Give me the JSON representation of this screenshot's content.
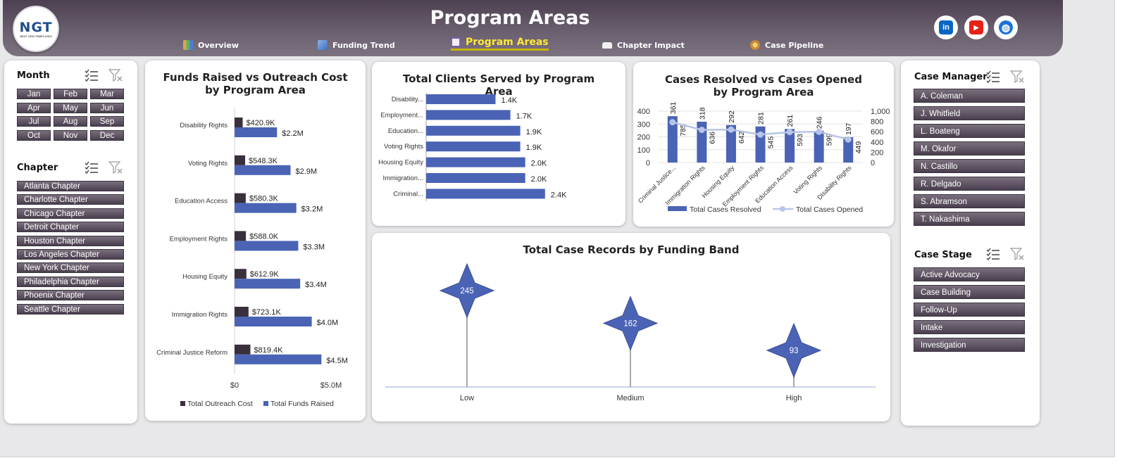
{
  "header": {
    "title": "Program Areas",
    "logo": {
      "text": "NGT",
      "subtext": "NEXT GEN TEMPLATES"
    },
    "nav": [
      {
        "label": "Overview",
        "icon": "bar-chart-icon"
      },
      {
        "label": "Funding Trend",
        "icon": "line-chart-icon"
      },
      {
        "label": "Program Areas",
        "icon": "clipboard-icon",
        "active": true
      },
      {
        "label": "Chapter Impact",
        "icon": "folder-icon"
      },
      {
        "label": "Case Pipeline",
        "icon": "pipeline-icon"
      }
    ],
    "social": [
      {
        "label": "in",
        "icon": "linkedin-icon",
        "color": "#0a66c2"
      },
      {
        "label": "▶",
        "icon": "youtube-icon",
        "color": "#e62117"
      },
      {
        "label": "◍",
        "icon": "globe-icon",
        "color": "#1a73d9"
      }
    ]
  },
  "slicers": {
    "month": {
      "title": "Month",
      "items": [
        "Jan",
        "Feb",
        "Mar",
        "Apr",
        "May",
        "Jun",
        "Jul",
        "Aug",
        "Sep",
        "Oct",
        "Nov",
        "Dec"
      ]
    },
    "chapter": {
      "title": "Chapter",
      "items": [
        "Atlanta Chapter",
        "Charlotte Chapter",
        "Chicago Chapter",
        "Detroit Chapter",
        "Houston Chapter",
        "Los Angeles Chapter",
        "New York Chapter",
        "Philadelphia Chapter",
        "Phoenix Chapter",
        "Seattle Chapter"
      ]
    },
    "case_manager": {
      "title": "Case Manager",
      "items": [
        "A. Coleman",
        "J. Whitfield",
        "L. Boateng",
        "M. Okafor",
        "N. Castillo",
        "R. Delgado",
        "S. Abramson",
        "T. Nakashima"
      ]
    },
    "case_stage": {
      "title": "Case Stage",
      "items": [
        "Active Advocacy",
        "Case Building",
        "Follow-Up",
        "Intake",
        "Investigation"
      ]
    }
  },
  "colors": {
    "header": "#5a4e5e",
    "outreach": "#3a2f3d",
    "funds": "#4a63b5",
    "opened": "#b8c5e6",
    "accent": "#ffe933"
  },
  "chart_data": [
    {
      "id": "funds",
      "type": "bar",
      "title": "Funds Raised vs Outreach Cost by Program Area",
      "categories": [
        "Disability Rights",
        "Voting Rights",
        "Education Access",
        "Employment Rights",
        "Housing Equity",
        "Immigration Rights",
        "Criminal Justice Reform"
      ],
      "series": [
        {
          "name": "Total Outreach Cost",
          "values": [
            420.9,
            548.3,
            580.3,
            588.0,
            612.9,
            723.1,
            819.4
          ],
          "labels": [
            "$420.9K",
            "$548.3K",
            "$580.3K",
            "$588.0K",
            "$612.9K",
            "$723.1K",
            "$819.4K"
          ]
        },
        {
          "name": "Total Funds Raised",
          "values": [
            2200,
            2900,
            3200,
            3300,
            3400,
            4000,
            4500
          ],
          "labels": [
            "$2.2M",
            "$2.9M",
            "$3.2M",
            "$3.3M",
            "$3.4M",
            "$4.0M",
            "$4.5M"
          ]
        }
      ],
      "xlim": [
        0,
        5000
      ],
      "tick_labels": [
        "$0",
        "$5.0M"
      ]
    },
    {
      "id": "clients",
      "type": "bar",
      "title": "Total Clients Served by Program Area",
      "categories": [
        "Disability...",
        "Employment...",
        "Education...",
        "Voting Rights",
        "Housing Equity",
        "Immigration...",
        "Criminal..."
      ],
      "values": [
        1.4,
        1.7,
        1.9,
        1.9,
        2.0,
        2.0,
        2.4
      ],
      "labels": [
        "1.4K",
        "1.7K",
        "1.9K",
        "1.9K",
        "2.0K",
        "2.0K",
        "2.4K"
      ],
      "xlim": [
        0,
        3.0
      ]
    },
    {
      "id": "cases",
      "type": "bar",
      "title": "Cases Resolved vs Cases Opened by Program Area",
      "categories": [
        "Criminal Justice...",
        "Immigration Rights",
        "Housing Equity",
        "Employment Rights",
        "Education Access",
        "Voting Rights",
        "Disability Rights"
      ],
      "series": [
        {
          "name": "Total Cases Resolved",
          "type": "bar",
          "values": [
            361,
            318,
            292,
            281,
            261,
            246,
            197
          ]
        },
        {
          "name": "Total Cases Opened",
          "type": "line",
          "values": [
            785,
            636,
            642,
            545,
            593,
            599,
            449
          ]
        }
      ],
      "y_left": {
        "range": [
          0,
          400
        ],
        "ticks": [
          "0",
          "100",
          "200",
          "300",
          "400"
        ]
      },
      "y_right": {
        "range": [
          0,
          1000
        ],
        "ticks": [
          "0",
          "200",
          "400",
          "600",
          "800",
          "1,000"
        ]
      }
    },
    {
      "id": "bands",
      "type": "scatter",
      "title": "Total Case Records by Funding Band",
      "categories": [
        "Low",
        "Medium",
        "High"
      ],
      "values": [
        245,
        162,
        93
      ]
    }
  ]
}
